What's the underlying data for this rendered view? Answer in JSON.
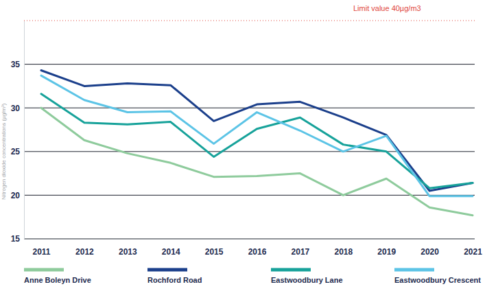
{
  "chart_data": {
    "type": "line",
    "y_label": "Nitrogen dioxide concentrations (µg/m³)",
    "categories": [
      "2011",
      "2012",
      "2013",
      "2014",
      "2015",
      "2016",
      "2017",
      "2018",
      "2019",
      "2020",
      "2021"
    ],
    "series": [
      {
        "name": "Anne Boleyn Drive",
        "color": "#8ecb9c",
        "values": [
          30.0,
          26.3,
          24.8,
          23.7,
          22.1,
          22.2,
          22.5,
          20.0,
          21.9,
          18.6,
          17.7
        ]
      },
      {
        "name": "Rochford Road",
        "color": "#1b3f8b",
        "values": [
          34.3,
          32.5,
          32.8,
          32.6,
          28.5,
          30.4,
          30.7,
          28.9,
          26.9,
          20.5,
          21.4
        ]
      },
      {
        "name": "Eastwoodbury Lane",
        "color": "#17a29a",
        "values": [
          31.6,
          28.3,
          28.1,
          28.4,
          24.4,
          27.6,
          28.9,
          25.8,
          25.0,
          20.8,
          21.4
        ]
      },
      {
        "name": "Eastwoodbury Crescent",
        "color": "#5cc4e6",
        "values": [
          33.7,
          30.9,
          29.5,
          29.6,
          25.9,
          29.5,
          27.4,
          25.0,
          26.8,
          19.9,
          19.9
        ]
      }
    ],
    "ylim": [
      15,
      40
    ],
    "yticks": [
      15,
      20,
      25,
      30,
      35
    ],
    "grid": true,
    "legend": "bottom",
    "annotations": [
      {
        "label": "Limit value 40µg/m3",
        "value": 40,
        "color": "#e0463c",
        "line_style": "dotted"
      }
    ]
  }
}
